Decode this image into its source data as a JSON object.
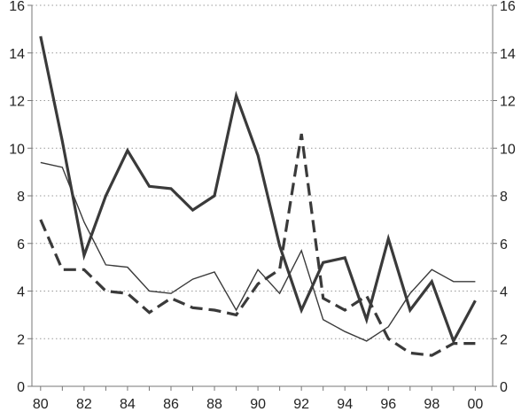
{
  "chart_data": {
    "type": "line",
    "title": "",
    "xlabel": "",
    "ylabel": "",
    "x": [
      1980,
      1981,
      1982,
      1983,
      1984,
      1985,
      1986,
      1987,
      1988,
      1989,
      1990,
      1991,
      1992,
      1993,
      1994,
      1995,
      1996,
      1997,
      1998,
      1999,
      2000
    ],
    "xticks": [
      1980,
      1982,
      1984,
      1986,
      1988,
      1990,
      1992,
      1994,
      1996,
      1998,
      2000
    ],
    "xtick_labels": [
      "80",
      "82",
      "84",
      "86",
      "88",
      "90",
      "92",
      "94",
      "96",
      "98",
      "00"
    ],
    "xlim": [
      1979.6,
      2000.8
    ],
    "ylim": [
      0,
      16
    ],
    "yticks": [
      0,
      2,
      4,
      6,
      8,
      10,
      12,
      14,
      16
    ],
    "ytick_labels_left": [
      "0",
      "2",
      "4",
      "6",
      "8",
      "10",
      "12",
      "14",
      "16"
    ],
    "ytick_labels_right": [
      "0",
      "2",
      "4",
      "6",
      "8",
      "10",
      "12",
      "14",
      "16"
    ],
    "grid": true,
    "legend": "none",
    "series": [
      {
        "style": "thick-solid",
        "color": "#3a3a3a",
        "values": [
          14.7,
          10.3,
          5.5,
          8.0,
          9.9,
          8.4,
          8.3,
          7.4,
          8.0,
          12.2,
          9.7,
          5.9,
          3.2,
          5.2,
          5.4,
          2.8,
          6.2,
          3.2,
          4.4,
          1.9,
          3.6
        ]
      },
      {
        "style": "thin-solid",
        "color": "#3a3a3a",
        "values": [
          9.4,
          9.2,
          6.9,
          5.1,
          5.0,
          4.0,
          3.9,
          4.5,
          4.8,
          3.2,
          4.9,
          3.9,
          5.7,
          2.8,
          2.3,
          1.9,
          2.5,
          3.9,
          4.9,
          4.4,
          4.4
        ]
      },
      {
        "style": "dashed",
        "color": "#3a3a3a",
        "values": [
          7.0,
          4.9,
          4.9,
          4.0,
          3.9,
          3.1,
          3.7,
          3.3,
          3.2,
          3.0,
          4.3,
          4.9,
          10.6,
          3.7,
          3.2,
          3.8,
          2.0,
          1.4,
          1.3,
          1.8,
          1.8
        ]
      }
    ]
  }
}
